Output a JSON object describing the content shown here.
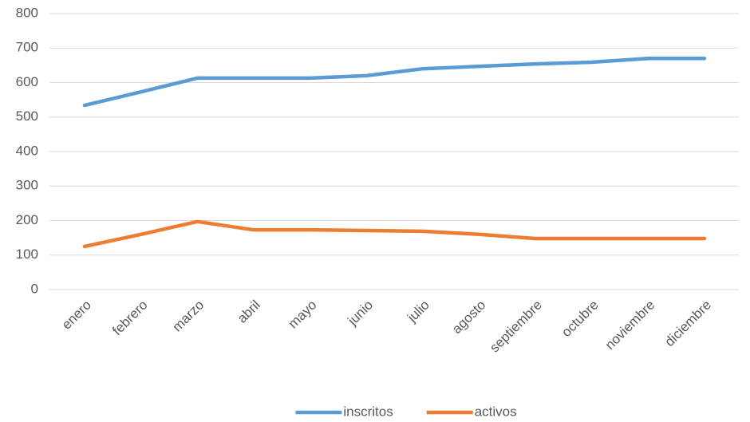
{
  "chart_data": {
    "type": "line",
    "categories": [
      "enero",
      "febrero",
      "marzo",
      "abril",
      "mayo",
      "junio",
      "julio",
      "agosto",
      "septiembre",
      "octubre",
      "noviembre",
      "diciembre"
    ],
    "series": [
      {
        "name": "inscritos",
        "color": "#5b9bd5",
        "values": [
          534,
          573,
          613,
          613,
          613,
          620,
          640,
          647,
          654,
          659,
          670,
          670
        ]
      },
      {
        "name": "activos",
        "color": "#ed7d31",
        "values": [
          125,
          160,
          197,
          173,
          173,
          171,
          169,
          160,
          148,
          148,
          148,
          148
        ]
      }
    ],
    "ylim": [
      0,
      800
    ],
    "yticks": [
      0,
      100,
      200,
      300,
      400,
      500,
      600,
      700,
      800
    ],
    "grid": true,
    "legend": "bottom"
  }
}
